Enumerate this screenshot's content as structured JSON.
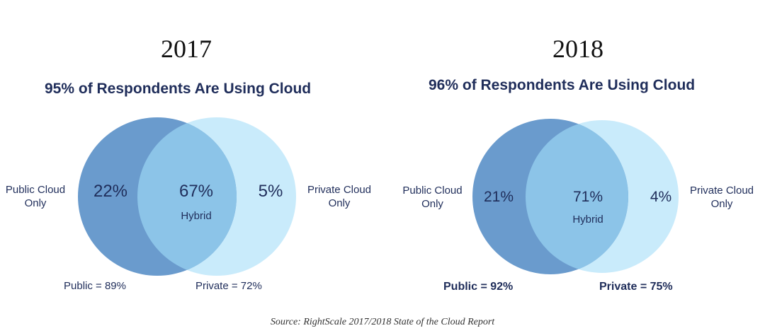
{
  "panels": [
    {
      "year": "2017",
      "heading": "95% of Respondents Are Using Cloud",
      "left_label_line1": "Public Cloud",
      "left_label_line2": "Only",
      "right_label_line1": "Private Cloud",
      "right_label_line2": "Only",
      "left_pct": "22%",
      "center_pct": "67%",
      "center_label": "Hybrid",
      "right_pct": "5%",
      "public_total": "Public = 89%",
      "private_total": "Private = 72%"
    },
    {
      "year": "2018",
      "heading": "96% of Respondents Are Using Cloud",
      "left_label_line1": "Public Cloud",
      "left_label_line2": "Only",
      "right_label_line1": "Private Cloud",
      "right_label_line2": "Only",
      "left_pct": "21%",
      "center_pct": "71%",
      "center_label": "Hybrid",
      "right_pct": "4%",
      "public_total": "Public = 92%",
      "private_total": "Private = 75%"
    }
  ],
  "colors": {
    "public_circle": "#6a9bcd",
    "private_circle": "#c9ebfb",
    "overlap": "#8cc4e8",
    "text_dark": "#1f2d5a"
  },
  "source": "Source: RightScale 2017/2018 State of the Cloud Report"
}
